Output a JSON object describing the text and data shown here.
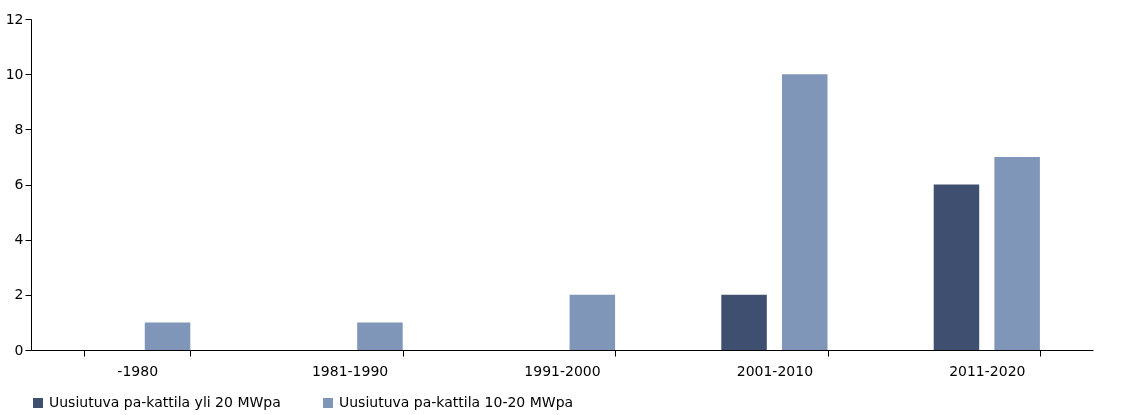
{
  "chart_data": {
    "type": "bar",
    "categories": [
      "-1980",
      "1981-1990",
      "1991-2000",
      "2001-2010",
      "2011-2020"
    ],
    "series": [
      {
        "name": "Uusiutuva pa-kattila yli 20 MWpa",
        "color": "#3f4f70",
        "values": [
          0,
          0,
          0,
          2,
          6
        ]
      },
      {
        "name": "Uusiutuva pa-kattila 10-20 MWpa",
        "color": "#8096b8",
        "values": [
          1,
          1,
          2,
          10,
          7
        ]
      }
    ],
    "ylim": [
      0,
      12
    ],
    "yticks": [
      0,
      2,
      4,
      6,
      8,
      10,
      12
    ],
    "grid": false,
    "legend": "bottom"
  }
}
